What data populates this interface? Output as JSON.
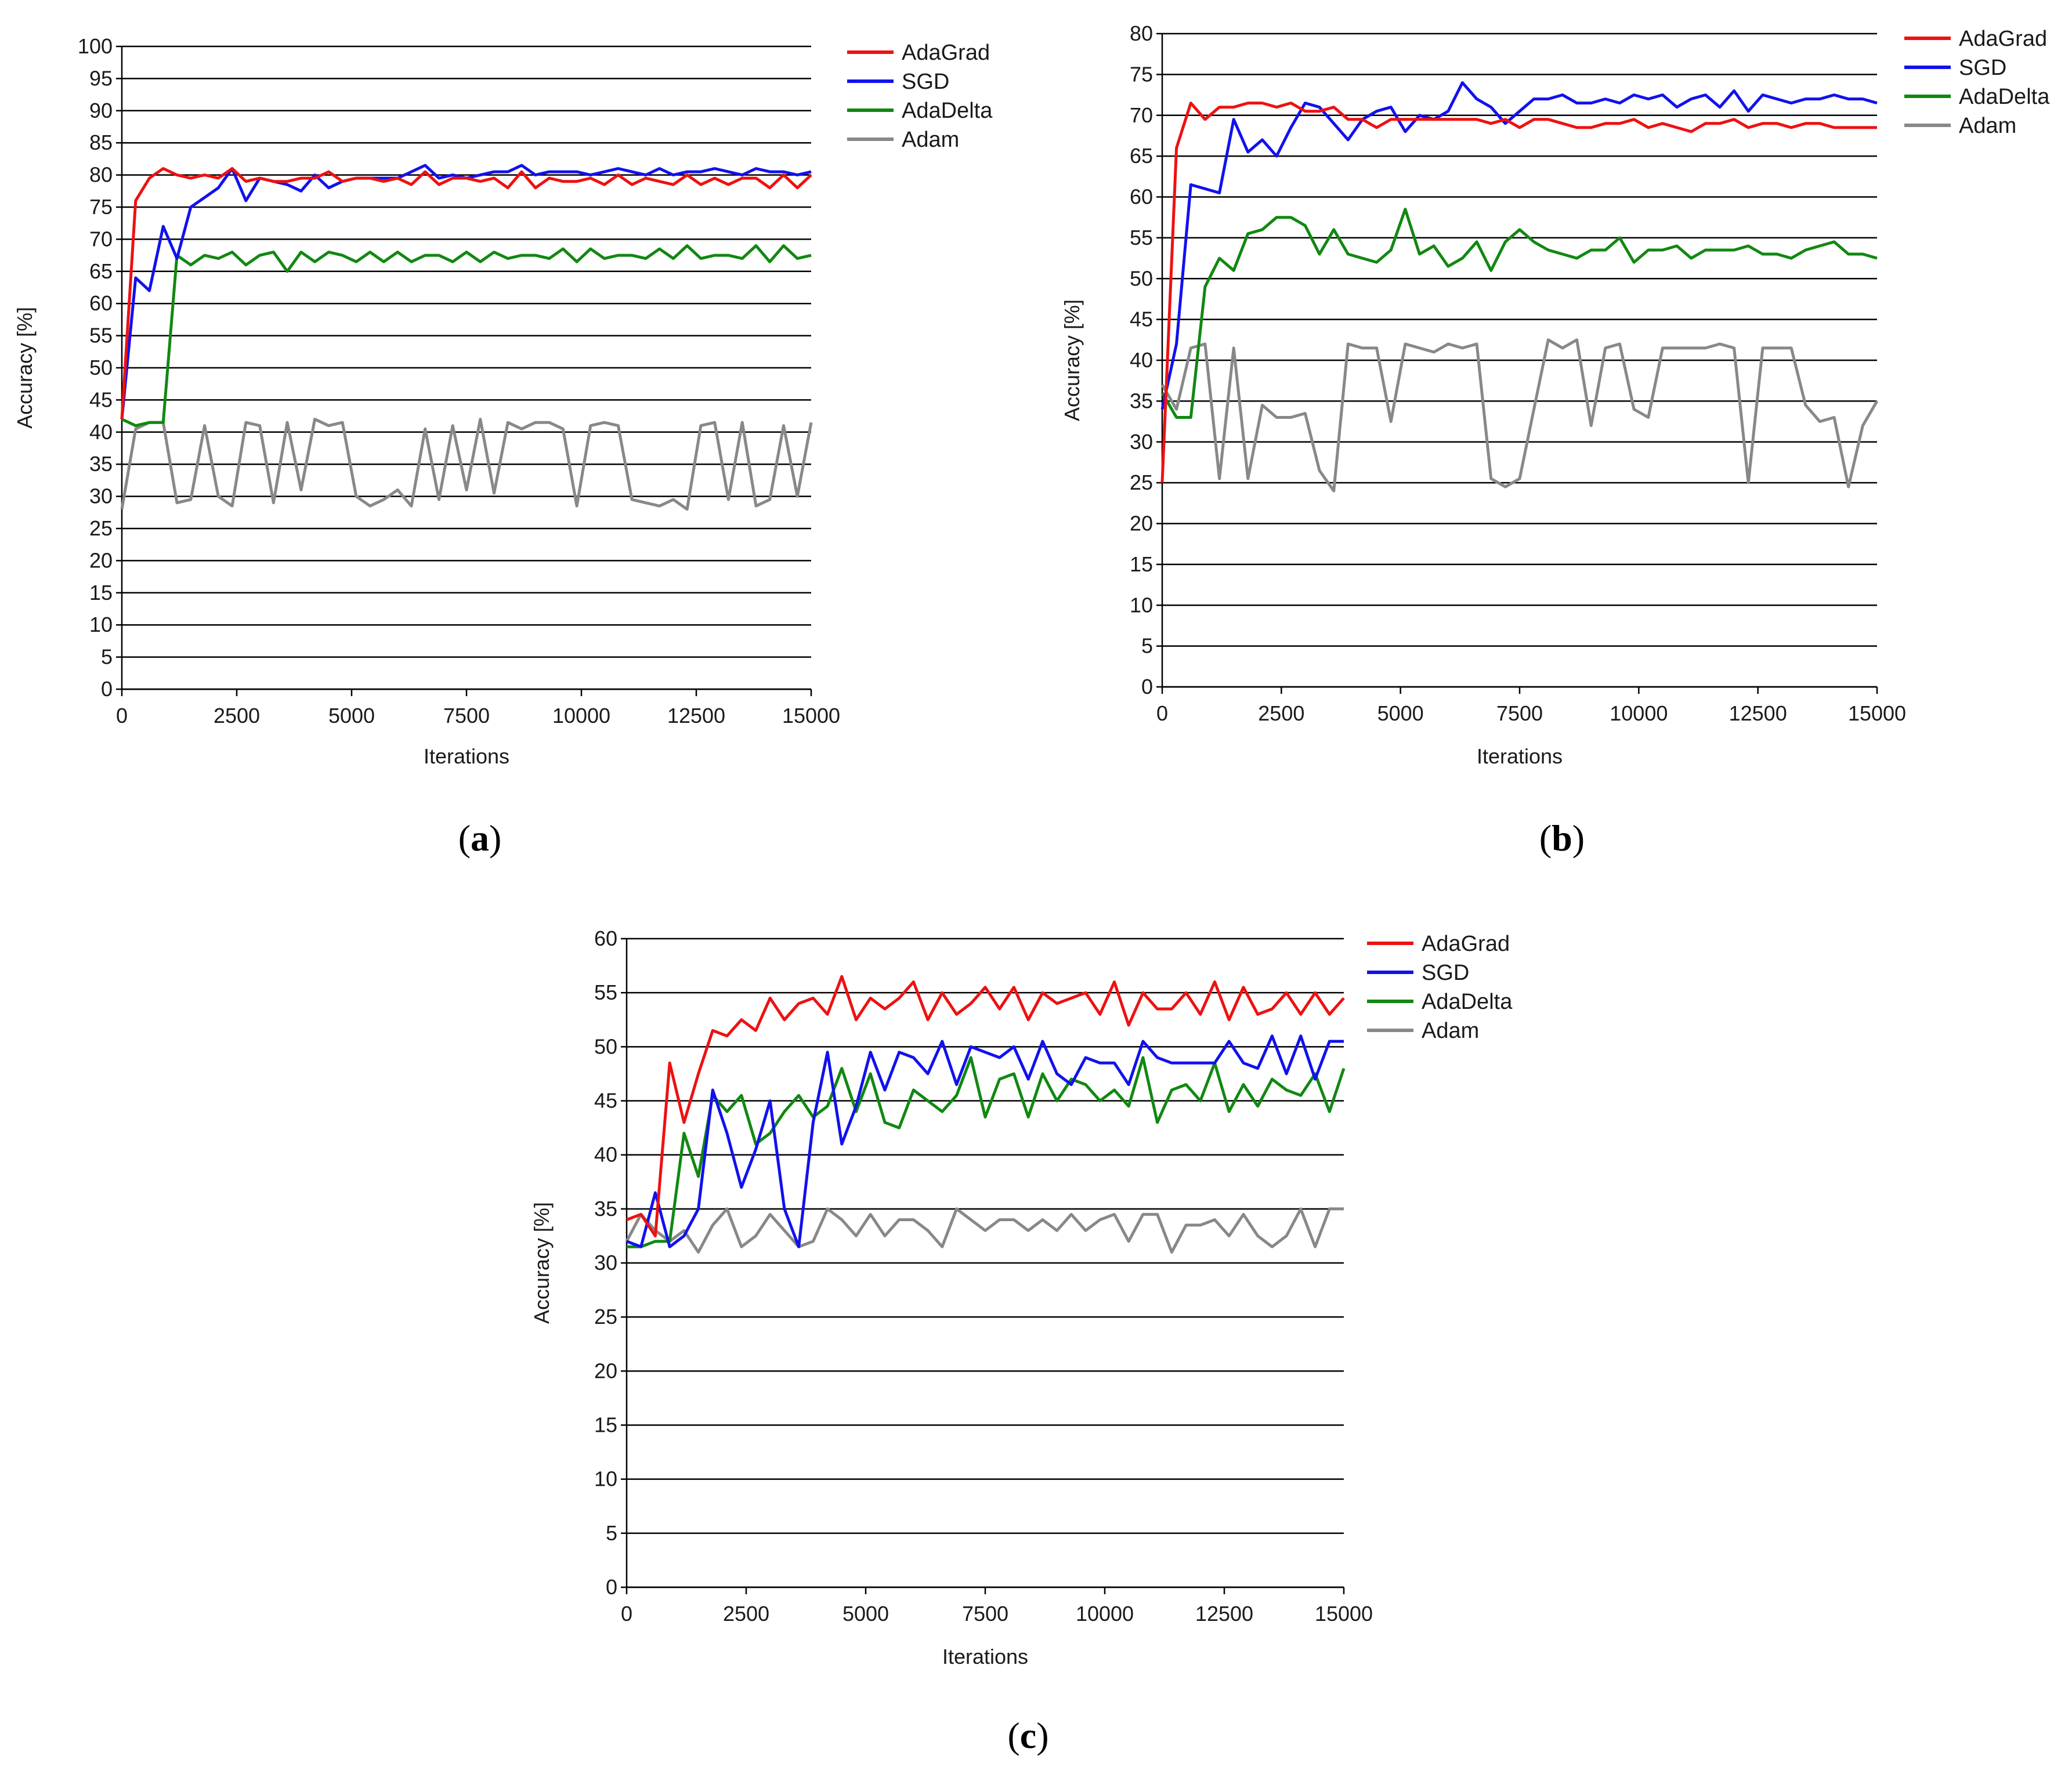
{
  "series_colors": {
    "AdaGrad": "#ee1111",
    "SGD": "#1111ee",
    "AdaDelta": "#118811",
    "Adam": "#888888"
  },
  "chart_data": [
    {
      "type": "line",
      "panel_label": "a",
      "xlabel": "Iterations",
      "ylabel": "Accuracy [%]",
      "xlim": [
        0,
        15000
      ],
      "ylim": [
        0,
        100
      ],
      "x_ticks": [
        0,
        2500,
        5000,
        7500,
        10000,
        12500,
        15000
      ],
      "y_ticks": [
        0,
        5,
        10,
        15,
        20,
        25,
        30,
        35,
        40,
        45,
        50,
        55,
        60,
        65,
        70,
        75,
        80,
        85,
        90,
        95,
        100
      ],
      "grid": true,
      "legend_position": "top-right, outside plot",
      "x": [
        0,
        300,
        600,
        900,
        1200,
        1500,
        1800,
        2100,
        2400,
        2700,
        3000,
        3300,
        3600,
        3900,
        4200,
        4500,
        4800,
        5100,
        5400,
        5700,
        6000,
        6300,
        6600,
        6900,
        7200,
        7500,
        7800,
        8100,
        8400,
        8700,
        9000,
        9300,
        9600,
        9900,
        10200,
        10500,
        10800,
        11100,
        11400,
        11700,
        12000,
        12300,
        12600,
        12900,
        13200,
        13500,
        13800,
        14100,
        14400,
        14700,
        15000
      ],
      "series": [
        {
          "name": "AdaGrad",
          "values": [
            42,
            76,
            79.5,
            81,
            80,
            79.5,
            80,
            79.5,
            81,
            79,
            79.5,
            79,
            79,
            79.5,
            79.5,
            80.5,
            79,
            79.5,
            79.5,
            79,
            79.5,
            78.5,
            80.5,
            78.5,
            79.5,
            79.5,
            79,
            79.5,
            78,
            80.5,
            78,
            79.5,
            79,
            79,
            79.5,
            78.5,
            80,
            78.5,
            79.5,
            79,
            78.5,
            80,
            78.5,
            79.5,
            78.5,
            79.5,
            79.5,
            78,
            80,
            78,
            80
          ]
        },
        {
          "name": "SGD",
          "values": [
            42,
            64,
            62,
            72,
            67,
            75,
            76.5,
            78,
            81,
            76,
            79.5,
            79,
            78.5,
            77.5,
            80,
            78,
            79,
            79.5,
            79.5,
            79.5,
            79.5,
            80.5,
            81.5,
            79.5,
            80,
            79.5,
            80,
            80.5,
            80.5,
            81.5,
            80,
            80.5,
            80.5,
            80.5,
            80,
            80.5,
            81,
            80.5,
            80,
            81,
            80,
            80.5,
            80.5,
            81,
            80.5,
            80,
            81,
            80.5,
            80.5,
            80,
            80.5
          ]
        },
        {
          "name": "AdaDelta",
          "values": [
            42,
            41,
            41.5,
            41.5,
            67.5,
            66,
            67.5,
            67,
            68,
            66,
            67.5,
            68,
            65,
            68,
            66.5,
            68,
            67.5,
            66.5,
            68,
            66.5,
            68,
            66.5,
            67.5,
            67.5,
            66.5,
            68,
            66.5,
            68,
            67,
            67.5,
            67.5,
            67,
            68.5,
            66.5,
            68.5,
            67,
            67.5,
            67.5,
            67,
            68.5,
            67,
            69,
            67,
            67.5,
            67.5,
            67,
            69,
            66.5,
            69,
            67,
            67.5
          ]
        },
        {
          "name": "Adam",
          "values": [
            28,
            40.5,
            41.5,
            41.5,
            29,
            29.5,
            41,
            30,
            28.5,
            41.5,
            41,
            29,
            41.5,
            31,
            42,
            41,
            41.5,
            30,
            28.5,
            29.5,
            31,
            28.5,
            40.5,
            29.5,
            41,
            31,
            42,
            30.5,
            41.5,
            40.5,
            41.5,
            41.5,
            40.5,
            28.5,
            41,
            41.5,
            41,
            29.5,
            29,
            28.5,
            29.5,
            28,
            41,
            41.5,
            29.5,
            41.5,
            28.5,
            29.5,
            41,
            30,
            41.5
          ]
        }
      ]
    },
    {
      "type": "line",
      "panel_label": "b",
      "xlabel": "Iterations",
      "ylabel": "Accuracy [%]",
      "xlim": [
        0,
        15000
      ],
      "ylim": [
        0,
        80
      ],
      "x_ticks": [
        0,
        2500,
        5000,
        7500,
        10000,
        12500,
        15000
      ],
      "y_ticks": [
        0,
        5,
        10,
        15,
        20,
        25,
        30,
        35,
        40,
        45,
        50,
        55,
        60,
        65,
        70,
        75,
        80
      ],
      "grid": true,
      "legend_position": "top-right, outside plot",
      "x": [
        0,
        300,
        600,
        900,
        1200,
        1500,
        1800,
        2100,
        2400,
        2700,
        3000,
        3300,
        3600,
        3900,
        4200,
        4500,
        4800,
        5100,
        5400,
        5700,
        6000,
        6300,
        6600,
        6900,
        7200,
        7500,
        7800,
        8100,
        8400,
        8700,
        9000,
        9300,
        9600,
        9900,
        10200,
        10500,
        10800,
        11100,
        11400,
        11700,
        12000,
        12300,
        12600,
        12900,
        13200,
        13500,
        13800,
        14100,
        14400,
        14700,
        15000
      ],
      "series": [
        {
          "name": "AdaGrad",
          "values": [
            25,
            66,
            71.5,
            69.5,
            71,
            71,
            71.5,
            71.5,
            71,
            71.5,
            70.5,
            70.5,
            71,
            69.5,
            69.5,
            68.5,
            69.5,
            69.5,
            69.5,
            69.5,
            69.5,
            69.5,
            69.5,
            69,
            69.5,
            68.5,
            69.5,
            69.5,
            69,
            68.5,
            68.5,
            69,
            69,
            69.5,
            68.5,
            69,
            68.5,
            68,
            69,
            69,
            69.5,
            68.5,
            69,
            69,
            68.5,
            69,
            69,
            68.5,
            68.5,
            68.5,
            68.5
          ]
        },
        {
          "name": "SGD",
          "values": [
            34,
            42,
            61.5,
            61,
            60.5,
            69.5,
            65.5,
            67,
            65,
            68.5,
            71.5,
            71,
            69,
            67,
            69.5,
            70.5,
            71,
            68,
            70,
            69.5,
            70.5,
            74,
            72,
            71,
            69,
            70.5,
            72,
            72,
            72.5,
            71.5,
            71.5,
            72,
            71.5,
            72.5,
            72,
            72.5,
            71,
            72,
            72.5,
            71,
            73,
            70.5,
            72.5,
            72,
            71.5,
            72,
            72,
            72.5,
            72,
            72,
            71.5
          ]
        },
        {
          "name": "AdaDelta",
          "values": [
            36,
            33,
            33,
            49,
            52.5,
            51,
            55.5,
            56,
            57.5,
            57.5,
            56.5,
            53,
            56,
            53,
            52.5,
            52,
            53.5,
            58.5,
            53,
            54,
            51.5,
            52.5,
            54.5,
            51,
            54.5,
            56,
            54.5,
            53.5,
            53,
            52.5,
            53.5,
            53.5,
            55,
            52,
            53.5,
            53.5,
            54,
            52.5,
            53.5,
            53.5,
            53.5,
            54,
            53,
            53,
            52.5,
            53.5,
            54,
            54.5,
            53,
            53,
            52.5
          ]
        },
        {
          "name": "Adam",
          "values": [
            37,
            34,
            41.5,
            42,
            25.5,
            41.5,
            25.5,
            34.5,
            33,
            33,
            33.5,
            26.5,
            24,
            42,
            41.5,
            41.5,
            32.5,
            42,
            41.5,
            41,
            42,
            41.5,
            42,
            25.5,
            24.5,
            25.5,
            34,
            42.5,
            41.5,
            42.5,
            32,
            41.5,
            42,
            34,
            33,
            41.5,
            41.5,
            41.5,
            41.5,
            42,
            41.5,
            25,
            41.5,
            41.5,
            41.5,
            34.5,
            32.5,
            33,
            24.5,
            32,
            35
          ]
        }
      ]
    },
    {
      "type": "line",
      "panel_label": "c",
      "xlabel": "Iterations",
      "ylabel": "Accuracy [%]",
      "xlim": [
        0,
        15000
      ],
      "ylim": [
        0,
        60
      ],
      "x_ticks": [
        0,
        2500,
        5000,
        7500,
        10000,
        12500,
        15000
      ],
      "y_ticks": [
        0,
        5,
        10,
        15,
        20,
        25,
        30,
        35,
        40,
        45,
        50,
        55,
        60
      ],
      "grid": true,
      "legend_position": "top-right, outside plot",
      "x": [
        0,
        300,
        600,
        900,
        1200,
        1500,
        1800,
        2100,
        2400,
        2700,
        3000,
        3300,
        3600,
        3900,
        4200,
        4500,
        4800,
        5100,
        5400,
        5700,
        6000,
        6300,
        6600,
        6900,
        7200,
        7500,
        7800,
        8100,
        8400,
        8700,
        9000,
        9300,
        9600,
        9900,
        10200,
        10500,
        10800,
        11100,
        11400,
        11700,
        12000,
        12300,
        12600,
        12900,
        13200,
        13500,
        13800,
        14100,
        14400,
        14700,
        15000
      ],
      "series": [
        {
          "name": "AdaGrad",
          "values": [
            34,
            34.5,
            32.5,
            48.5,
            43,
            47.5,
            51.5,
            51,
            52.5,
            51.5,
            54.5,
            52.5,
            54,
            54.5,
            53,
            56.5,
            52.5,
            54.5,
            53.5,
            54.5,
            56,
            52.5,
            55,
            53,
            54,
            55.5,
            53.5,
            55.5,
            52.5,
            55,
            54,
            54.5,
            55,
            53,
            56,
            52,
            55,
            53.5,
            53.5,
            55,
            53,
            56,
            52.5,
            55.5,
            53,
            53.5,
            55,
            53,
            55,
            53,
            54.5
          ]
        },
        {
          "name": "SGD",
          "values": [
            32,
            31.5,
            36.5,
            31.5,
            32.5,
            35,
            46,
            42,
            37,
            40.5,
            45,
            35,
            31.5,
            43,
            49.5,
            41,
            44.5,
            49.5,
            46,
            49.5,
            49,
            47.5,
            50.5,
            46.5,
            50,
            49.5,
            49,
            50,
            47,
            50.5,
            47.5,
            46.5,
            49,
            48.5,
            48.5,
            46.5,
            50.5,
            49,
            48.5,
            48.5,
            48.5,
            48.5,
            50.5,
            48.5,
            48,
            51,
            47.5,
            51,
            47,
            50.5,
            50.5
          ]
        },
        {
          "name": "AdaDelta",
          "values": [
            31.5,
            31.5,
            32,
            32,
            42,
            38,
            45.5,
            44,
            45.5,
            41,
            42,
            44,
            45.5,
            43.5,
            44.5,
            48,
            44,
            47.5,
            43,
            42.5,
            46,
            45,
            44,
            45.5,
            49,
            43.5,
            47,
            47.5,
            43.5,
            47.5,
            45,
            47,
            46.5,
            45,
            46,
            44.5,
            49,
            43,
            46,
            46.5,
            45,
            48.5,
            44,
            46.5,
            44.5,
            47,
            46,
            45.5,
            47.5,
            44,
            48
          ]
        },
        {
          "name": "Adam",
          "values": [
            32,
            34.5,
            33,
            32,
            33,
            31,
            33.5,
            35,
            31.5,
            32.5,
            34.5,
            33,
            31.5,
            32,
            35,
            34,
            32.5,
            34.5,
            32.5,
            34,
            34,
            33,
            31.5,
            35,
            34,
            33,
            34,
            34,
            33,
            34,
            33,
            34.5,
            33,
            34,
            34.5,
            32,
            34.5,
            34.5,
            31,
            33.5,
            33.5,
            34,
            32.5,
            34.5,
            32.5,
            31.5,
            32.5,
            35,
            31.5,
            35,
            35
          ]
        }
      ]
    }
  ]
}
